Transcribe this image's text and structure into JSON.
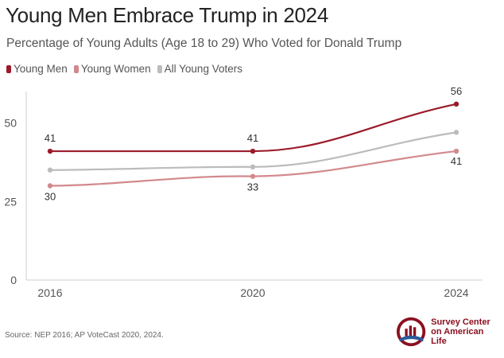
{
  "header": {
    "title": "Young Men Embrace Trump in 2024",
    "subtitle": "Percentage of Young Adults (Age 18 to 29) Who Voted for Donald Trump"
  },
  "footer": {
    "source": "Source: NEP 2016; AP VoteCast 2020, 2024.",
    "logo_line1": "Survey Center",
    "logo_line2": "on American Life"
  },
  "colors": {
    "young_men": "#9b1b2a",
    "young_women": "#d2898d",
    "all_young": "#bcbcbc",
    "brand": "#8b1020"
  },
  "chart_data": {
    "type": "line",
    "title": "Young Men Embrace Trump in 2024",
    "subtitle": "Percentage of Young Adults (Age 18 to 29) Who Voted for Donald Trump",
    "xlabel": "",
    "ylabel": "",
    "x": [
      2016,
      2020,
      2024
    ],
    "ylim": [
      0,
      60
    ],
    "yticks": [
      0,
      25,
      50
    ],
    "grid": false,
    "legend_position": "top-left",
    "series": [
      {
        "name": "Young Men",
        "values": [
          41,
          41,
          56
        ],
        "color": "#9b1b2a",
        "labels": [
          "41",
          "41",
          "56"
        ]
      },
      {
        "name": "Young Women",
        "values": [
          30,
          33,
          41
        ],
        "color": "#d2898d",
        "labels": [
          "30",
          "33",
          "41"
        ]
      },
      {
        "name": "All Young Voters",
        "values": [
          35,
          36,
          47
        ],
        "color": "#bcbcbc",
        "labels": []
      }
    ]
  }
}
